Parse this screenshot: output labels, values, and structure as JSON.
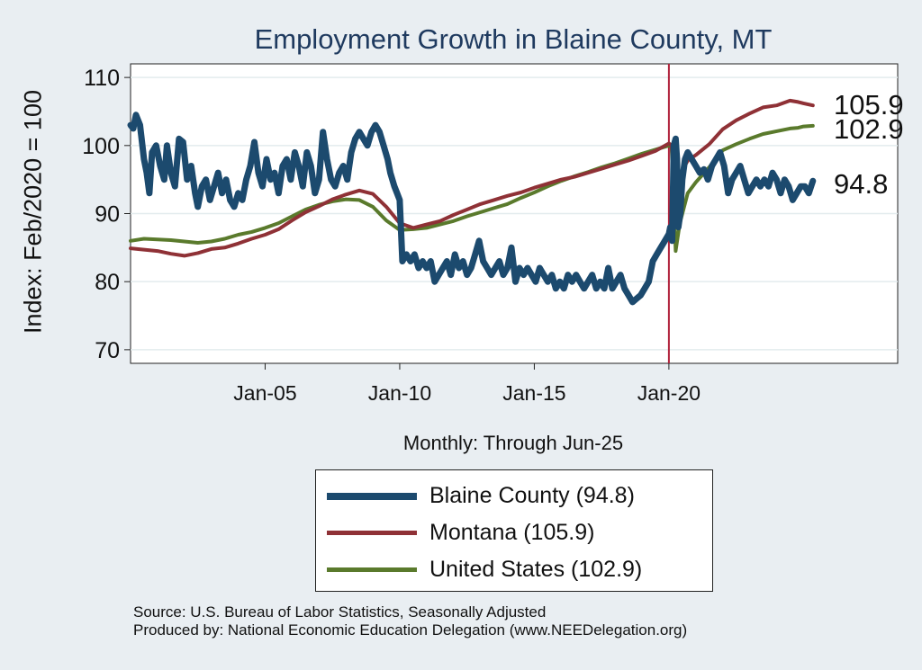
{
  "title": "Employment Growth in Blaine  County, MT",
  "ylabel": "Index: Feb/2020 = 100",
  "xnote": "Monthly: Through Jun-25",
  "source_lines": [
    "Source: U.S. Bureau of Labor Statistics, Seasonally Adjusted",
    "Produced by: National Economic Education Delegation (www.NEEDelegation.org)"
  ],
  "legend": [
    {
      "label": "Blaine  County (94.8)",
      "color": "#1c4a6e"
    },
    {
      "label": "Montana (105.9)",
      "color": "#8f3136"
    },
    {
      "label": "United States (102.9)",
      "color": "#5a7a2c"
    }
  ],
  "chart_data": {
    "type": "line",
    "title": "Employment Growth in Blaine  County, MT",
    "ylabel": "Index: Feb/2020 = 100",
    "xlabel": "Monthly: Through Jun-25",
    "xlim": [
      2000.0,
      2028.5
    ],
    "ylim": [
      68,
      112
    ],
    "yticks": [
      70,
      80,
      90,
      100,
      110
    ],
    "xticks": [
      {
        "label": "Jan-05",
        "x": 2005.0
      },
      {
        "label": "Jan-10",
        "x": 2010.0
      },
      {
        "label": "Jan-15",
        "x": 2015.0
      },
      {
        "label": "Jan-20",
        "x": 2020.0
      }
    ],
    "vline": {
      "x": 2020.0,
      "color": "#b0203a"
    },
    "end_labels": [
      {
        "series": "Montana",
        "text": "105.9",
        "value": 105.9
      },
      {
        "series": "United States",
        "text": "102.9",
        "value": 102.9
      },
      {
        "series": "Blaine  County",
        "text": "94.8",
        "value": 94.8
      }
    ],
    "series": [
      {
        "name": "Blaine  County",
        "color": "#1c4a6e",
        "width": 7,
        "points": [
          [
            2000.0,
            103
          ],
          [
            2000.1,
            102.5
          ],
          [
            2000.2,
            104.5
          ],
          [
            2000.35,
            103
          ],
          [
            2000.5,
            98
          ],
          [
            2000.6,
            96
          ],
          [
            2000.7,
            93
          ],
          [
            2000.8,
            99
          ],
          [
            2000.95,
            100
          ],
          [
            2001.1,
            97
          ],
          [
            2001.25,
            95
          ],
          [
            2001.35,
            100
          ],
          [
            2001.5,
            96
          ],
          [
            2001.65,
            94
          ],
          [
            2001.8,
            101
          ],
          [
            2001.95,
            100.5
          ],
          [
            2002.1,
            95
          ],
          [
            2002.25,
            97
          ],
          [
            2002.4,
            93
          ],
          [
            2002.5,
            91
          ],
          [
            2002.65,
            94
          ],
          [
            2002.8,
            95
          ],
          [
            2002.95,
            92
          ],
          [
            2003.1,
            94
          ],
          [
            2003.25,
            96
          ],
          [
            2003.4,
            93
          ],
          [
            2003.55,
            95
          ],
          [
            2003.7,
            92
          ],
          [
            2003.85,
            91
          ],
          [
            2004.0,
            93
          ],
          [
            2004.15,
            92
          ],
          [
            2004.3,
            95
          ],
          [
            2004.45,
            97
          ],
          [
            2004.6,
            100.5
          ],
          [
            2004.75,
            96
          ],
          [
            2004.9,
            94
          ],
          [
            2005.05,
            98
          ],
          [
            2005.2,
            95
          ],
          [
            2005.35,
            96
          ],
          [
            2005.5,
            93
          ],
          [
            2005.65,
            97
          ],
          [
            2005.8,
            98
          ],
          [
            2005.95,
            95
          ],
          [
            2006.1,
            99
          ],
          [
            2006.25,
            97
          ],
          [
            2006.4,
            94
          ],
          [
            2006.55,
            99
          ],
          [
            2006.7,
            97
          ],
          [
            2006.85,
            93
          ],
          [
            2007.0,
            95
          ],
          [
            2007.15,
            102
          ],
          [
            2007.3,
            98
          ],
          [
            2007.45,
            95
          ],
          [
            2007.6,
            94
          ],
          [
            2007.75,
            96
          ],
          [
            2007.9,
            97
          ],
          [
            2008.05,
            95
          ],
          [
            2008.2,
            99
          ],
          [
            2008.35,
            101
          ],
          [
            2008.5,
            102
          ],
          [
            2008.65,
            101
          ],
          [
            2008.8,
            100
          ],
          [
            2008.95,
            102
          ],
          [
            2009.1,
            103
          ],
          [
            2009.25,
            102
          ],
          [
            2009.4,
            100
          ],
          [
            2009.55,
            98
          ],
          [
            2009.65,
            96
          ],
          [
            2009.8,
            94
          ],
          [
            2009.9,
            93
          ],
          [
            2010.0,
            92
          ],
          [
            2010.1,
            83
          ],
          [
            2010.25,
            84
          ],
          [
            2010.4,
            83
          ],
          [
            2010.55,
            84
          ],
          [
            2010.7,
            82
          ],
          [
            2010.85,
            83
          ],
          [
            2011.0,
            82
          ],
          [
            2011.15,
            83
          ],
          [
            2011.3,
            80
          ],
          [
            2011.45,
            81
          ],
          [
            2011.6,
            82
          ],
          [
            2011.75,
            83
          ],
          [
            2011.9,
            81
          ],
          [
            2012.05,
            84
          ],
          [
            2012.2,
            82
          ],
          [
            2012.35,
            83
          ],
          [
            2012.5,
            81
          ],
          [
            2012.65,
            82
          ],
          [
            2012.8,
            84
          ],
          [
            2012.95,
            86
          ],
          [
            2013.1,
            83
          ],
          [
            2013.25,
            82
          ],
          [
            2013.4,
            81
          ],
          [
            2013.55,
            82
          ],
          [
            2013.7,
            83
          ],
          [
            2013.85,
            81
          ],
          [
            2014.0,
            82
          ],
          [
            2014.15,
            85
          ],
          [
            2014.3,
            80
          ],
          [
            2014.45,
            82
          ],
          [
            2014.6,
            81
          ],
          [
            2014.75,
            82
          ],
          [
            2014.9,
            81
          ],
          [
            2015.05,
            80
          ],
          [
            2015.2,
            82
          ],
          [
            2015.35,
            81
          ],
          [
            2015.5,
            80
          ],
          [
            2015.65,
            81
          ],
          [
            2015.8,
            79
          ],
          [
            2015.95,
            80
          ],
          [
            2016.1,
            79
          ],
          [
            2016.25,
            81
          ],
          [
            2016.4,
            80
          ],
          [
            2016.55,
            81
          ],
          [
            2016.7,
            80
          ],
          [
            2016.85,
            79
          ],
          [
            2017.0,
            80
          ],
          [
            2017.15,
            81
          ],
          [
            2017.3,
            79
          ],
          [
            2017.45,
            80
          ],
          [
            2017.6,
            79
          ],
          [
            2017.75,
            82
          ],
          [
            2017.9,
            79
          ],
          [
            2018.05,
            80
          ],
          [
            2018.2,
            81
          ],
          [
            2018.35,
            79
          ],
          [
            2018.5,
            78
          ],
          [
            2018.65,
            77
          ],
          [
            2018.8,
            77.5
          ],
          [
            2018.95,
            78
          ],
          [
            2019.1,
            79
          ],
          [
            2019.25,
            80
          ],
          [
            2019.4,
            83
          ],
          [
            2019.55,
            84
          ],
          [
            2019.7,
            85
          ],
          [
            2019.85,
            86
          ],
          [
            2020.0,
            87
          ],
          [
            2020.05,
            88
          ],
          [
            2020.12,
            86
          ],
          [
            2020.18,
            100
          ],
          [
            2020.25,
            101
          ],
          [
            2020.3,
            98
          ],
          [
            2020.35,
            88
          ],
          [
            2020.42,
            90
          ],
          [
            2020.5,
            95
          ],
          [
            2020.6,
            98
          ],
          [
            2020.7,
            99
          ],
          [
            2020.85,
            98
          ],
          [
            2021.0,
            97
          ],
          [
            2021.15,
            96
          ],
          [
            2021.3,
            96.5
          ],
          [
            2021.45,
            95
          ],
          [
            2021.6,
            97
          ],
          [
            2021.75,
            98
          ],
          [
            2021.9,
            99
          ],
          [
            2022.05,
            97
          ],
          [
            2022.2,
            93
          ],
          [
            2022.35,
            95
          ],
          [
            2022.5,
            96
          ],
          [
            2022.65,
            97
          ],
          [
            2022.8,
            95
          ],
          [
            2022.95,
            93
          ],
          [
            2023.1,
            94
          ],
          [
            2023.25,
            95
          ],
          [
            2023.4,
            94
          ],
          [
            2023.55,
            95
          ],
          [
            2023.7,
            94
          ],
          [
            2023.85,
            96
          ],
          [
            2024.0,
            95
          ],
          [
            2024.15,
            93
          ],
          [
            2024.3,
            95
          ],
          [
            2024.45,
            94
          ],
          [
            2024.6,
            92
          ],
          [
            2024.75,
            93
          ],
          [
            2024.9,
            94
          ],
          [
            2025.05,
            94
          ],
          [
            2025.2,
            93
          ],
          [
            2025.35,
            94.8
          ]
        ]
      },
      {
        "name": "Montana",
        "color": "#8f3136",
        "width": 4,
        "points": [
          [
            2000.0,
            84.9
          ],
          [
            2000.5,
            84.7
          ],
          [
            2001.0,
            84.5
          ],
          [
            2001.5,
            84.1
          ],
          [
            2002.0,
            83.8
          ],
          [
            2002.5,
            84.2
          ],
          [
            2003.0,
            84.8
          ],
          [
            2003.5,
            85.0
          ],
          [
            2004.0,
            85.6
          ],
          [
            2004.5,
            86.3
          ],
          [
            2005.0,
            86.9
          ],
          [
            2005.5,
            87.7
          ],
          [
            2006.0,
            89.0
          ],
          [
            2006.5,
            90.2
          ],
          [
            2007.0,
            91.1
          ],
          [
            2007.5,
            92.1
          ],
          [
            2008.0,
            92.8
          ],
          [
            2008.5,
            93.4
          ],
          [
            2009.0,
            92.9
          ],
          [
            2009.5,
            91.0
          ],
          [
            2010.0,
            88.6
          ],
          [
            2010.5,
            87.9
          ],
          [
            2011.0,
            88.4
          ],
          [
            2011.5,
            88.9
          ],
          [
            2012.0,
            89.8
          ],
          [
            2012.5,
            90.6
          ],
          [
            2013.0,
            91.4
          ],
          [
            2013.5,
            92.0
          ],
          [
            2014.0,
            92.6
          ],
          [
            2014.5,
            93.1
          ],
          [
            2015.0,
            93.8
          ],
          [
            2015.5,
            94.4
          ],
          [
            2016.0,
            95.0
          ],
          [
            2016.5,
            95.4
          ],
          [
            2017.0,
            96.0
          ],
          [
            2017.5,
            96.6
          ],
          [
            2018.0,
            97.2
          ],
          [
            2018.5,
            97.8
          ],
          [
            2019.0,
            98.5
          ],
          [
            2019.5,
            99.2
          ],
          [
            2020.0,
            100.3
          ],
          [
            2020.1,
            100.0
          ],
          [
            2020.25,
            91.0
          ],
          [
            2020.45,
            96.0
          ],
          [
            2020.7,
            97.8
          ],
          [
            2021.0,
            98.6
          ],
          [
            2021.5,
            100.2
          ],
          [
            2022.0,
            102.4
          ],
          [
            2022.5,
            103.7
          ],
          [
            2023.0,
            104.7
          ],
          [
            2023.5,
            105.6
          ],
          [
            2024.0,
            105.9
          ],
          [
            2024.5,
            106.6
          ],
          [
            2024.8,
            106.4
          ],
          [
            2025.0,
            106.2
          ],
          [
            2025.35,
            105.9
          ]
        ]
      },
      {
        "name": "United States",
        "color": "#5a7a2c",
        "width": 4,
        "points": [
          [
            2000.0,
            86.0
          ],
          [
            2000.5,
            86.3
          ],
          [
            2001.0,
            86.2
          ],
          [
            2001.5,
            86.1
          ],
          [
            2002.0,
            85.9
          ],
          [
            2002.5,
            85.7
          ],
          [
            2003.0,
            85.9
          ],
          [
            2003.5,
            86.3
          ],
          [
            2004.0,
            86.9
          ],
          [
            2004.5,
            87.3
          ],
          [
            2005.0,
            87.9
          ],
          [
            2005.5,
            88.6
          ],
          [
            2006.0,
            89.6
          ],
          [
            2006.5,
            90.6
          ],
          [
            2007.0,
            91.3
          ],
          [
            2007.5,
            91.8
          ],
          [
            2008.0,
            92.1
          ],
          [
            2008.5,
            92.0
          ],
          [
            2009.0,
            91.0
          ],
          [
            2009.5,
            89.0
          ],
          [
            2010.0,
            87.6
          ],
          [
            2010.5,
            87.7
          ],
          [
            2011.0,
            87.9
          ],
          [
            2011.5,
            88.4
          ],
          [
            2012.0,
            88.9
          ],
          [
            2012.5,
            89.6
          ],
          [
            2013.0,
            90.2
          ],
          [
            2013.5,
            90.8
          ],
          [
            2014.0,
            91.4
          ],
          [
            2014.5,
            92.3
          ],
          [
            2015.0,
            93.1
          ],
          [
            2015.5,
            94.0
          ],
          [
            2016.0,
            94.8
          ],
          [
            2016.5,
            95.5
          ],
          [
            2017.0,
            96.1
          ],
          [
            2017.5,
            96.8
          ],
          [
            2018.0,
            97.4
          ],
          [
            2018.5,
            98.1
          ],
          [
            2019.0,
            98.8
          ],
          [
            2019.5,
            99.4
          ],
          [
            2020.0,
            100.0
          ],
          [
            2020.1,
            99.8
          ],
          [
            2020.25,
            84.5
          ],
          [
            2020.4,
            88.5
          ],
          [
            2020.7,
            93.0
          ],
          [
            2021.0,
            94.6
          ],
          [
            2021.5,
            96.8
          ],
          [
            2022.0,
            99.3
          ],
          [
            2022.5,
            100.2
          ],
          [
            2023.0,
            101.0
          ],
          [
            2023.5,
            101.7
          ],
          [
            2024.0,
            102.1
          ],
          [
            2024.5,
            102.5
          ],
          [
            2024.8,
            102.6
          ],
          [
            2025.0,
            102.8
          ],
          [
            2025.35,
            102.9
          ]
        ]
      }
    ]
  }
}
